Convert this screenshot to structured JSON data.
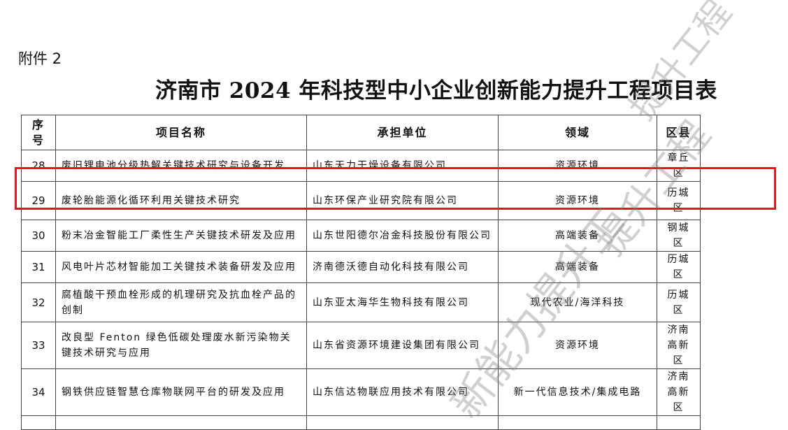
{
  "attachment_label": "附件 2",
  "title": "济南市 2024 年科技型中小企业创新能力提升工程项目表",
  "table": {
    "headers": [
      "序号",
      "项目名称",
      "承担单位",
      "领域",
      "区县"
    ],
    "rows": [
      {
        "no": "28",
        "name": "废旧锂电池分级热解关键技术研究与设备开发",
        "unit": "山东天力干燥设备有限公司",
        "field": "资源环境",
        "district": "章丘区"
      },
      {
        "no": "29",
        "name": "废轮胎能源化循环利用关键技术研究",
        "unit": "山东环保产业研究院有限公司",
        "field": "资源环境",
        "district": "历城区"
      },
      {
        "no": "30",
        "name": "粉末冶金智能工厂柔性生产关键技术研发及应用",
        "unit": "山东世阳德尔冶金科技股份有限公司",
        "field": "高端装备",
        "district": "钢城区"
      },
      {
        "no": "31",
        "name": "风电叶片芯材智能加工关键技术装备研发及应用",
        "unit": "济南德沃德自动化科技有限公司",
        "field": "高端装备",
        "district": "历城区"
      },
      {
        "no": "32",
        "name": "腐植酸干预血栓形成的机理研究及抗血栓产品的创制",
        "unit": "山东亚太海华生物科技有限公司",
        "field": "现代农业/海洋科技",
        "district": "历城区"
      },
      {
        "no": "33",
        "name": "改良型 Fenton 绿色低碳处理废水新污染物关键技术研究与应用",
        "unit": "山东省资源环境建设集团有限公司",
        "field": "资源环境",
        "district": "济南高新区"
      },
      {
        "no": "34",
        "name": "钢铁供应链智慧仓库物联网平台的研发及应用",
        "unit": "山东信达物联应用技术有限公司",
        "field": "新一代信息技术/集成电路",
        "district": "济南高新区"
      }
    ]
  },
  "highlight_color": "#e8141c",
  "watermark": "创新能力提升工程"
}
